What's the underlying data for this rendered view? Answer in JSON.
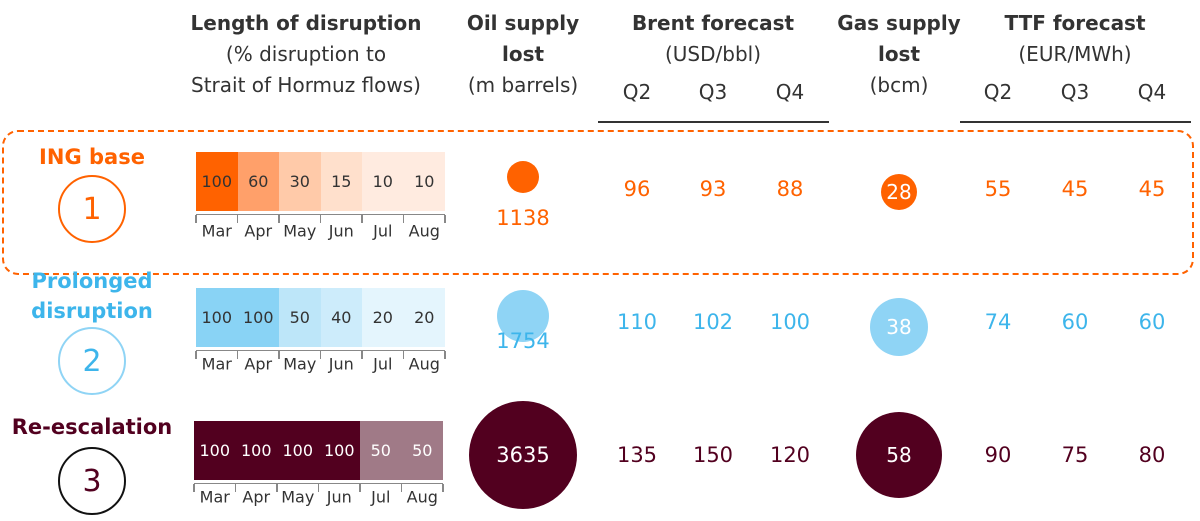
{
  "headers": {
    "disruption": {
      "title": "Length of disruption",
      "sub1": "(% disruption to",
      "sub2": "Strait of Hormuz flows)"
    },
    "oil": {
      "title1": "Oil supply",
      "title2": "lost",
      "unit": "(m barrels)"
    },
    "brent": {
      "title": "Brent forecast",
      "unit": "(USD/bbl)",
      "quarters": [
        "Q2",
        "Q3",
        "Q4"
      ]
    },
    "gas": {
      "title1": "Gas supply",
      "title2": "lost",
      "unit": "(bcm)"
    },
    "ttf": {
      "title": "TTF forecast",
      "unit": "(EUR/MWh)",
      "quarters": [
        "Q2",
        "Q3",
        "Q4"
      ]
    }
  },
  "months": [
    "Mar",
    "Apr",
    "May",
    "Jun",
    "Jul",
    "Aug"
  ],
  "scenarios": [
    {
      "label_lines": [
        "ING base"
      ],
      "number": "1",
      "color": "#ff6200",
      "circle_color": "#ff6200",
      "highlighted": true,
      "disruption": [
        100,
        60,
        30,
        15,
        10,
        10
      ],
      "oil_lost": "1138",
      "brent": [
        "96",
        "93",
        "88"
      ],
      "gas_lost": "28",
      "ttf": [
        "55",
        "45",
        "45"
      ]
    },
    {
      "label_lines": [
        "Prolonged",
        "disruption"
      ],
      "number": "2",
      "color": "#3db5eb",
      "circle_color": "#8fd4f5",
      "highlighted": false,
      "disruption": [
        100,
        100,
        50,
        40,
        20,
        20
      ],
      "oil_lost": "1754",
      "brent": [
        "110",
        "102",
        "100"
      ],
      "gas_lost": "38",
      "ttf": [
        "74",
        "60",
        "60"
      ]
    },
    {
      "label_lines": [
        "Re-escalation"
      ],
      "number": "3",
      "color": "#52001f",
      "circle_color": "#52001f",
      "highlighted": false,
      "disruption": [
        100,
        100,
        100,
        100,
        50,
        50
      ],
      "oil_lost": "3635",
      "brent": [
        "135",
        "150",
        "120"
      ],
      "gas_lost": "58",
      "ttf": [
        "90",
        "75",
        "80"
      ]
    }
  ]
}
